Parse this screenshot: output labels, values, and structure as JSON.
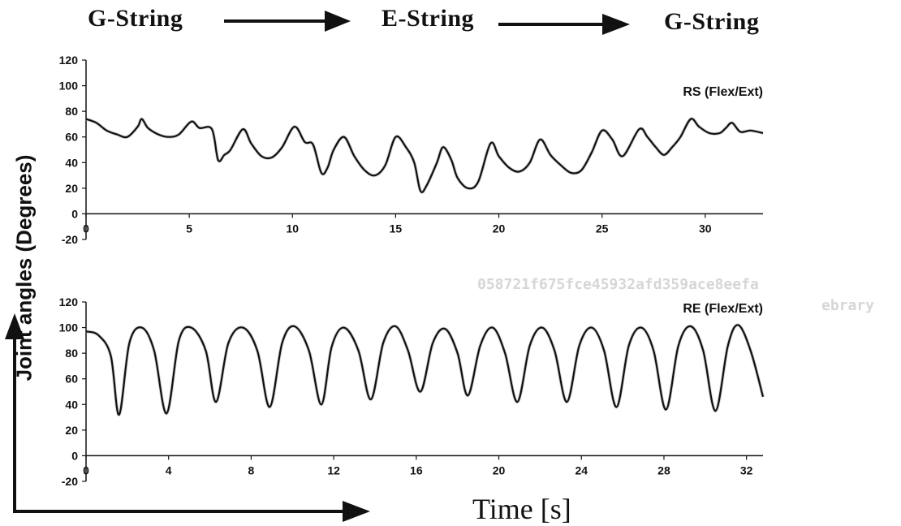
{
  "banner": {
    "label1": "G-String",
    "label2": "E-String",
    "label3": "G-String"
  },
  "ylabel": "Joint angles (Degrees)",
  "xlabel": "Time [s]",
  "watermark": {
    "line1": "058721f675fce45932afd359ace8eefa",
    "line2": "ebrary"
  },
  "chart_data": [
    {
      "type": "line",
      "title": "RS (Flex/Ext)",
      "xlim": [
        0,
        32.8
      ],
      "ylim": [
        -20,
        120
      ],
      "xticks": [
        0,
        5,
        10,
        15,
        20,
        25,
        30
      ],
      "yticks": [
        -20,
        0,
        20,
        40,
        60,
        80,
        100,
        120
      ],
      "color": "#111111",
      "series": [
        {
          "x": [
            0,
            0.5,
            1,
            1.5,
            2,
            2.5,
            2.7,
            3,
            3.5,
            4,
            4.5,
            5.1,
            5.5,
            6.1,
            6.4,
            6.7,
            7,
            7.6,
            8,
            8.5,
            9,
            9.5,
            10.1,
            10.6,
            11,
            11.4,
            11.7,
            12,
            12.5,
            13,
            13.5,
            14,
            14.5,
            15,
            15.5,
            15.9,
            16.2,
            16.5,
            17,
            17.3,
            17.7,
            18,
            18.5,
            19,
            19.6,
            20,
            20.5,
            21,
            21.5,
            22,
            22.5,
            23,
            23.5,
            24,
            24.5,
            25,
            25.5,
            26,
            26.8,
            27.2,
            27.6,
            28,
            28.4,
            28.8,
            29.3,
            29.7,
            30.2,
            30.7,
            31,
            31.3,
            31.7,
            32.2,
            32.8
          ],
          "y": [
            74,
            71,
            65,
            62,
            60,
            68,
            74,
            67,
            62,
            60,
            62,
            72,
            67,
            66,
            42,
            46,
            50,
            66,
            55,
            45,
            44,
            52,
            68,
            56,
            54,
            32,
            36,
            50,
            60,
            45,
            34,
            30,
            38,
            60,
            52,
            40,
            18,
            22,
            40,
            52,
            42,
            28,
            20,
            25,
            55,
            45,
            36,
            33,
            40,
            58,
            46,
            38,
            32,
            34,
            48,
            65,
            58,
            45,
            66,
            60,
            52,
            46,
            52,
            60,
            74,
            68,
            63,
            63,
            67,
            71,
            64,
            65,
            63
          ]
        }
      ]
    },
    {
      "type": "line",
      "title": "RE (Flex/Ext)",
      "xlim": [
        0,
        32.8
      ],
      "ylim": [
        -20,
        120
      ],
      "xticks": [
        0,
        4,
        8,
        12,
        16,
        20,
        24,
        28,
        32
      ],
      "yticks": [
        -20,
        0,
        20,
        40,
        60,
        80,
        100,
        120
      ],
      "color": "#111111",
      "series": [
        {
          "x": [
            0,
            0.6,
            1.2,
            1.6,
            2.1,
            2.7,
            3.3,
            3.9,
            4.5,
            5.1,
            5.8,
            6.3,
            6.9,
            7.6,
            8.3,
            8.9,
            9.5,
            10.1,
            10.8,
            11.4,
            11.9,
            12.5,
            13.2,
            13.8,
            14.4,
            15,
            15.6,
            16.2,
            16.8,
            17.4,
            18,
            18.5,
            19.1,
            19.7,
            20.3,
            20.9,
            21.5,
            22.1,
            22.7,
            23.3,
            23.9,
            24.5,
            25.1,
            25.7,
            26.3,
            26.9,
            27.5,
            28.1,
            28.7,
            29.3,
            29.9,
            30.5,
            31.1,
            31.6,
            32.2,
            32.8
          ],
          "y": [
            97,
            94,
            78,
            32,
            88,
            100,
            82,
            33,
            90,
            100,
            82,
            42,
            88,
            100,
            82,
            38,
            88,
            101,
            82,
            40,
            85,
            100,
            82,
            44,
            88,
            101,
            82,
            50,
            88,
            99,
            80,
            47,
            86,
            100,
            80,
            42,
            86,
            100,
            82,
            42,
            86,
            100,
            82,
            38,
            86,
            100,
            82,
            36,
            86,
            101,
            82,
            35,
            86,
            102,
            82,
            46
          ]
        }
      ]
    }
  ]
}
